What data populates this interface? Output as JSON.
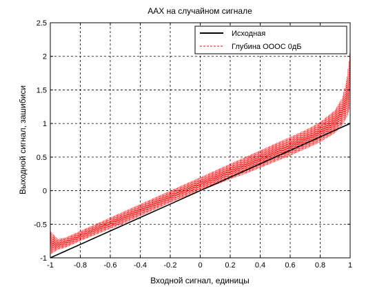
{
  "chart_data": {
    "type": "line",
    "title": "ААХ на случайном сигнале",
    "xlabel": "Входной сигнал, единицы",
    "ylabel": "Выходной сигнал, зашибиси",
    "xlim": [
      -1,
      1
    ],
    "ylim": [
      -1,
      2.5
    ],
    "xticks": [
      -1,
      -0.8,
      -0.6,
      -0.4,
      -0.2,
      0,
      0.2,
      0.4,
      0.6,
      0.8,
      1
    ],
    "xtick_labels": [
      "-1",
      "-0.8",
      "-0.6",
      "-0.4",
      "-0.2",
      "0",
      "0.2",
      "0.4",
      "0.6",
      "0.8",
      "1"
    ],
    "yticks": [
      -1,
      -0.5,
      0,
      0.5,
      1,
      1.5,
      2,
      2.5
    ],
    "ytick_labels": [
      "-1",
      "-0.5",
      "0",
      "0.5",
      "1",
      "1.5",
      "2",
      "2.5"
    ],
    "grid": true,
    "legend_position": "top-right",
    "series": [
      {
        "name": "Исходная",
        "color": "#000000",
        "style": "solid",
        "x": [
          -1,
          -0.8,
          -0.6,
          -0.4,
          -0.2,
          0,
          0.2,
          0.4,
          0.6,
          0.8,
          1
        ],
        "y": [
          -1,
          -0.8,
          -0.6,
          -0.4,
          -0.2,
          0,
          0.2,
          0.4,
          0.6,
          0.8,
          1
        ]
      },
      {
        "name": "Глубина ОООС 0дБ",
        "color": "#ff0000",
        "style": "dashed",
        "x": [
          -1,
          -0.95,
          -0.9,
          -0.8,
          -0.7,
          -0.6,
          -0.5,
          -0.4,
          -0.3,
          -0.2,
          -0.1,
          0,
          0.1,
          0.2,
          0.3,
          0.4,
          0.5,
          0.6,
          0.7,
          0.8,
          0.9,
          0.95,
          0.98,
          1
        ],
        "y_low": [
          -0.95,
          -0.88,
          -0.85,
          -0.75,
          -0.66,
          -0.57,
          -0.48,
          -0.38,
          -0.28,
          -0.18,
          -0.09,
          0.0,
          0.08,
          0.17,
          0.25,
          0.34,
          0.43,
          0.52,
          0.62,
          0.72,
          0.86,
          0.98,
          1.1,
          1.25
        ],
        "y_high": [
          -0.6,
          -0.72,
          -0.7,
          -0.6,
          -0.5,
          -0.4,
          -0.3,
          -0.2,
          -0.1,
          0.0,
          0.1,
          0.2,
          0.3,
          0.4,
          0.5,
          0.6,
          0.7,
          0.8,
          0.9,
          1.02,
          1.2,
          1.4,
          1.7,
          2.1
        ]
      }
    ]
  }
}
